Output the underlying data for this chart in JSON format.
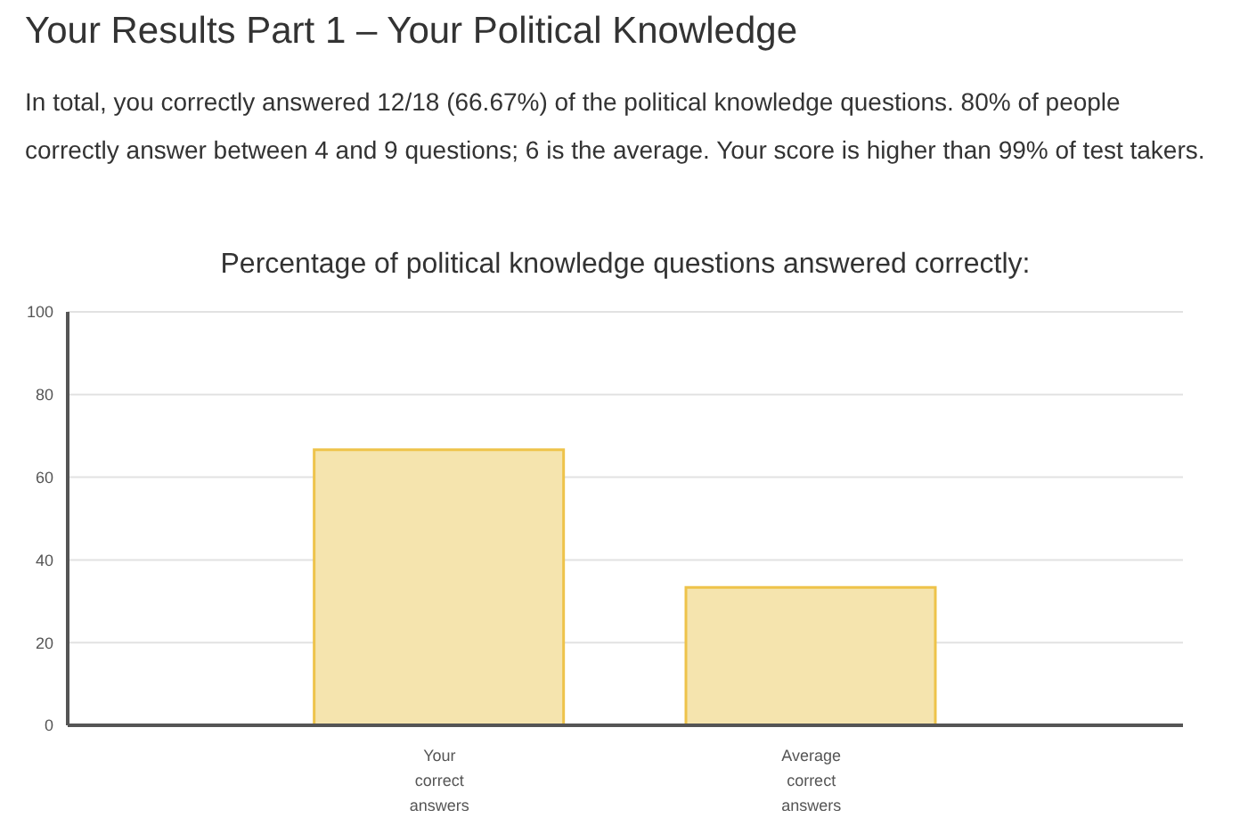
{
  "chart_data": {
    "type": "bar",
    "title": "Your Results Part 1 – Your Political Knowledge",
    "subtitle": "In total, you correctly answered 12/18 (66.67%) of the political knowledge questions. 80% of people correctly answer between 4 and 9 questions; 6 is the average. Your score is higher than 99% of test takers.",
    "annotations": [
      "Percentage of political knowledge questions answered correctly:"
    ],
    "categories": [
      "Your correct answers",
      "Average correct answers"
    ],
    "values": [
      66.67,
      33.33
    ],
    "color": "#f5e4ae",
    "ylim": [
      0,
      100
    ],
    "yticks": [
      0,
      20,
      40,
      60,
      80,
      100
    ],
    "grid": "y"
  }
}
